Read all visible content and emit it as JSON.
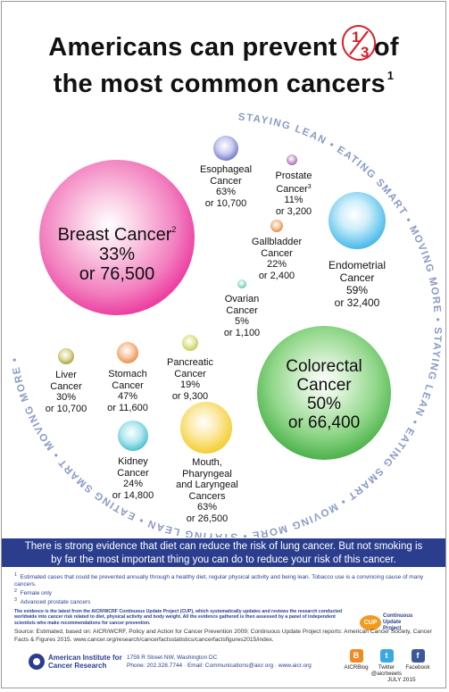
{
  "title": {
    "line1_prefix": "Americans can prevent ",
    "fraction_numerator": "1",
    "fraction_denominator": "3",
    "line1_suffix": "of",
    "line2": "the most common cancers",
    "line2_footnote": "1"
  },
  "ring": {
    "segments": [
      "STAYING LEAN",
      "EATING SMART",
      "MOVING MORE",
      "STAYING LEAN",
      "EATING SMART",
      "MOVING MORE",
      "STAYING LEAN",
      "EATING SMART",
      "MOVING MORE"
    ],
    "separator": "•",
    "text_color": "#8a9bc4"
  },
  "cancers": [
    {
      "key": "breast",
      "name": "Breast Cancer",
      "note": "2",
      "percent": "33%",
      "cases": "or 76,500",
      "color": "#e8148c"
    },
    {
      "key": "colorectal",
      "name": "Colorectal",
      "name2": "Cancer",
      "percent": "50%",
      "cases": "or 66,400",
      "color": "#3aa83a"
    },
    {
      "key": "esophageal",
      "name": "Esophageal",
      "name2": "Cancer",
      "percent": "63%",
      "cases": "or 10,700",
      "color": "#5860b8"
    },
    {
      "key": "prostate",
      "name": "Prostate",
      "name2": "Cancer",
      "note": "3",
      "percent": "11%",
      "cases": "or 3,200",
      "color": "#8b3fa0"
    },
    {
      "key": "gallbladder",
      "name": "Gallbladder",
      "name2": "Cancer",
      "percent": "22%",
      "cases": "or 2,400",
      "color": "#d8701e"
    },
    {
      "key": "endometrial",
      "name": "Endometrial",
      "name2": "Cancer",
      "percent": "59%",
      "cases": "or 32,400",
      "color": "#1ea6dd"
    },
    {
      "key": "ovarian",
      "name": "Ovarian",
      "name2": "Cancer",
      "percent": "5%",
      "cases": "or 1,100",
      "color": "#2fae8c"
    },
    {
      "key": "liver",
      "name": "Liver",
      "name2": "Cancer",
      "percent": "30%",
      "cases": "or 10,700",
      "color": "#8c8a24"
    },
    {
      "key": "stomach",
      "name": "Stomach",
      "name2": "Cancer",
      "percent": "47%",
      "cases": "or 11,600",
      "color": "#e2772a"
    },
    {
      "key": "pancreatic",
      "name": "Pancreatic",
      "name2": "Cancer",
      "percent": "19%",
      "cases": "or 9,300",
      "color": "#b2be2c"
    },
    {
      "key": "kidney",
      "name": "Kidney",
      "name2": "Cancer",
      "percent": "24%",
      "cases": "or 14,800",
      "color": "#24b0c0"
    },
    {
      "key": "mouth",
      "name": "Mouth,",
      "name2": "Pharyngeal",
      "name3": "and Laryngeal",
      "name4": "Cancers",
      "percent": "63%",
      "cases": "or 26,500",
      "color": "#f2c21e"
    }
  ],
  "banner": {
    "line1": "There is strong evidence that diet can reduce the risk of lung cancer. But not smoking is",
    "line2": "by far the most important thing you can do to reduce your risk of this cancer.",
    "bg_color": "#2b3e8e"
  },
  "footnotes": {
    "n1": "1",
    "t1": "Estimated cases that could be prevented annually through a healthy diet, regular physical activity and being lean. Tobacco use is a convincing cause of many cancers.",
    "n2": "2",
    "t2": "Female only",
    "n3": "3",
    "t3": "Advanced prostate cancers",
    "evidence": "The evidence is the latest from the AICR/WCRF Continuous Update Project (CUP), which systematically updates and reviews the research conducted worldwide into cancer risk related to diet, physical activity and body weight. All the evidence gathered is then assessed by a panel of independent scientists who make recommendations for cancer prevention.",
    "source": "Source: Estimated, based on: AICR/WCRF, Policy and Action for Cancer Prevention 2009; Continuous Update Project reports: American Cancer Society, Cancer Facts & Figures 2015. www.cancer.org/research/cancerfactsstatistics/cancerfactsfigures2015/index."
  },
  "cup": {
    "badge": "CUP",
    "line1": "Continuous",
    "line2": "Update",
    "line3": "Project"
  },
  "org": {
    "name1": "American Institute for",
    "name2": "Cancer Research",
    "address1": "1759 R Street NW, Washington DC",
    "address2": "Phone: 202.328.7744 · Email: Communications@aicr.org · www.aicr.org"
  },
  "social": [
    {
      "label": "AICRBlog",
      "icon": "blog-icon",
      "glyph": "B",
      "color": "#f08a24"
    },
    {
      "label": "Twitter",
      "label2": "@aicrtweets",
      "icon": "twitter-icon",
      "glyph": "t",
      "color": "#3aa9e0"
    },
    {
      "label": "Facebook",
      "icon": "facebook-icon",
      "glyph": "f",
      "color": "#3b5998"
    }
  ],
  "date": "JULY 2015"
}
